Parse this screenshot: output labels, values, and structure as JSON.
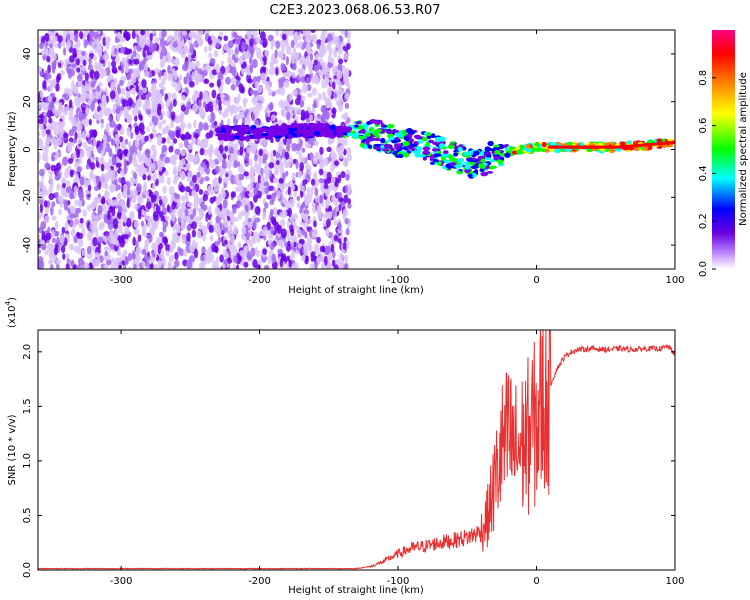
{
  "figure": {
    "title": "C2E3.2023.068.06.53.R07"
  },
  "chart_data": [
    {
      "type": "heatmap",
      "title": "",
      "xlabel": "Height of straight line (km)",
      "ylabel": "Frequency (Hz)",
      "xlim": [
        -360,
        100
      ],
      "ylim": [
        -50,
        50
      ],
      "xticks": [
        -300,
        -200,
        -100,
        0,
        100
      ],
      "yticks": [
        -40,
        -20,
        0,
        20,
        40
      ],
      "xtick_labels": [
        "-300",
        "-200",
        "-100",
        "0",
        "100"
      ],
      "ytick_labels": [
        "-40",
        "-20",
        "0",
        "20",
        "40"
      ],
      "colorbar": {
        "label": "Normalized spectral amplitude",
        "range": [
          0,
          1
        ],
        "ticks": [
          0.0,
          0.2,
          0.4,
          0.6,
          0.8
        ],
        "tick_labels": [
          "0.0",
          "0.2",
          "0.4",
          "0.6",
          "0.8"
        ],
        "colormap": [
          "#ffffff",
          "#7a00e6",
          "#0000ff",
          "#00ffff",
          "#00ff00",
          "#ffff00",
          "#ff8000",
          "#ff0000",
          "#ff0080"
        ]
      },
      "ridge_frequency_hz": {
        "height_km": [
          -230,
          -200,
          -170,
          -140,
          -120,
          -100,
          -80,
          -60,
          -45,
          -35,
          -25,
          -10,
          0,
          20,
          40,
          60,
          80,
          100
        ],
        "frequency_hz": [
          7,
          7,
          8,
          8,
          7,
          3,
          1,
          -3,
          -6,
          -4,
          -1,
          0,
          1,
          1,
          1,
          1,
          2,
          3
        ]
      },
      "noise_region_km": [
        -360,
        -135
      ],
      "grid": false
    },
    {
      "type": "line",
      "title": "",
      "xlabel": "Height of straight line (km)",
      "ylabel": "SNR (10 * v/v)",
      "multiplier_label": "(x10",
      "multiplier_exponent": "4",
      "multiplier_close": ")",
      "xlim": [
        -360,
        100
      ],
      "ylim": [
        0,
        2.2
      ],
      "xticks": [
        -300,
        -200,
        -100,
        0,
        100
      ],
      "yticks": [
        0.0,
        0.5,
        1.0,
        1.5,
        2.0
      ],
      "xtick_labels": [
        "-300",
        "-200",
        "-100",
        "0",
        "100"
      ],
      "ytick_labels": [
        "0.0",
        "0.5",
        "1.0",
        "1.5",
        "2.0"
      ],
      "color": "#e83030",
      "series": [
        {
          "x": [
            -360,
            -300,
            -200,
            -130,
            -120,
            -110,
            -100,
            -90,
            -80,
            -70,
            -60,
            -50,
            -40,
            -35,
            -30,
            -25,
            -20,
            -15,
            -10,
            -5,
            0,
            5,
            10,
            15,
            20,
            25,
            30,
            40,
            50,
            60,
            70,
            80,
            90,
            95,
            100
          ],
          "y": [
            0.01,
            0.01,
            0.01,
            0.01,
            0.03,
            0.08,
            0.15,
            0.2,
            0.22,
            0.25,
            0.27,
            0.3,
            0.35,
            0.5,
            0.8,
            1.1,
            1.2,
            1.1,
            1.15,
            1.25,
            1.35,
            1.55,
            1.7,
            1.85,
            1.95,
            2.0,
            2.02,
            2.03,
            2.02,
            2.03,
            2.02,
            2.03,
            2.03,
            2.05,
            1.98
          ]
        }
      ],
      "grid": false
    }
  ]
}
